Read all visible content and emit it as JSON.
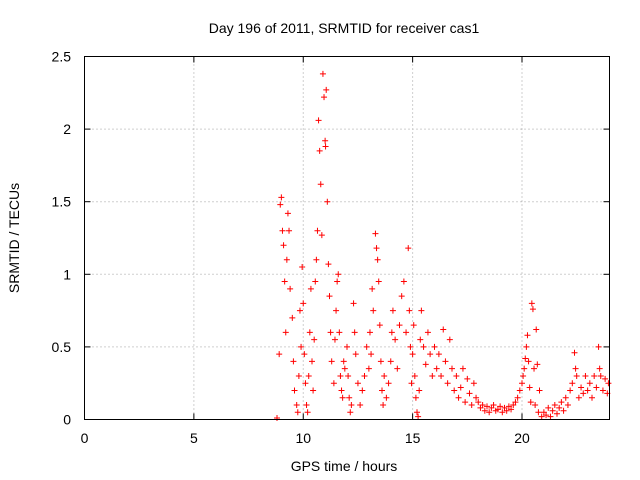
{
  "chart_data": {
    "type": "scatter",
    "title": "Day 196 of 2011, SRMTID for receiver cas1",
    "xlabel": "GPS time / hours",
    "ylabel": "SRMTID / TECUs",
    "xlim": [
      0,
      24
    ],
    "ylim": [
      0,
      2.5
    ],
    "xticks": [
      0,
      5,
      10,
      15,
      20
    ],
    "xtick_labels": [
      "0",
      "5",
      "10",
      "15",
      "20"
    ],
    "yticks": [
      0,
      0.5,
      1,
      1.5,
      2,
      2.5
    ],
    "ytick_labels": [
      "0",
      "0.5",
      "1",
      "1.5",
      "2",
      "2.5"
    ],
    "grid": true,
    "marker": "+",
    "marker_color": "#ff0000",
    "series": [
      {
        "name": "cas1",
        "points": [
          [
            8.8,
            0.01
          ],
          [
            8.9,
            0.45
          ],
          [
            8.95,
            1.48
          ],
          [
            9.0,
            1.53
          ],
          [
            9.05,
            1.3
          ],
          [
            9.1,
            1.2
          ],
          [
            9.15,
            0.95
          ],
          [
            9.2,
            0.6
          ],
          [
            9.25,
            1.1
          ],
          [
            9.3,
            1.42
          ],
          [
            9.35,
            1.3
          ],
          [
            9.4,
            0.9
          ],
          [
            9.5,
            0.7
          ],
          [
            9.55,
            0.4
          ],
          [
            9.6,
            0.2
          ],
          [
            9.7,
            0.1
          ],
          [
            9.75,
            0.05
          ],
          [
            9.8,
            0.3
          ],
          [
            9.85,
            0.75
          ],
          [
            9.9,
            0.5
          ],
          [
            9.95,
            1.05
          ],
          [
            10.0,
            0.8
          ],
          [
            10.05,
            0.45
          ],
          [
            10.1,
            0.25
          ],
          [
            10.15,
            0.1
          ],
          [
            10.2,
            0.05
          ],
          [
            10.25,
            0.3
          ],
          [
            10.3,
            0.6
          ],
          [
            10.35,
            0.9
          ],
          [
            10.4,
            0.4
          ],
          [
            10.45,
            0.2
          ],
          [
            10.5,
            0.55
          ],
          [
            10.55,
            0.95
          ],
          [
            10.6,
            1.1
          ],
          [
            10.65,
            1.3
          ],
          [
            10.7,
            2.06
          ],
          [
            10.75,
            1.85
          ],
          [
            10.8,
            1.62
          ],
          [
            10.85,
            1.27
          ],
          [
            10.9,
            2.38
          ],
          [
            10.95,
            2.22
          ],
          [
            11.0,
            1.92
          ],
          [
            11.02,
            1.88
          ],
          [
            11.05,
            2.27
          ],
          [
            11.1,
            1.5
          ],
          [
            11.15,
            1.07
          ],
          [
            11.2,
            0.85
          ],
          [
            11.25,
            0.6
          ],
          [
            11.3,
            0.4
          ],
          [
            11.4,
            0.25
          ],
          [
            11.45,
            0.55
          ],
          [
            11.5,
            0.75
          ],
          [
            11.55,
            0.95
          ],
          [
            11.6,
            1.0
          ],
          [
            11.65,
            0.6
          ],
          [
            11.7,
            0.3
          ],
          [
            11.75,
            0.2
          ],
          [
            11.8,
            0.15
          ],
          [
            11.85,
            0.4
          ],
          [
            11.9,
            0.35
          ],
          [
            12.0,
            0.5
          ],
          [
            12.05,
            0.3
          ],
          [
            12.1,
            0.15
          ],
          [
            12.15,
            0.05
          ],
          [
            12.2,
            0.1
          ],
          [
            12.3,
            0.8
          ],
          [
            12.35,
            0.6
          ],
          [
            12.4,
            0.45
          ],
          [
            12.5,
            0.25
          ],
          [
            12.6,
            0.1
          ],
          [
            12.7,
            0.2
          ],
          [
            12.8,
            0.3
          ],
          [
            12.9,
            0.5
          ],
          [
            13.0,
            0.35
          ],
          [
            13.05,
            0.6
          ],
          [
            13.1,
            0.45
          ],
          [
            13.15,
            0.9
          ],
          [
            13.2,
            0.75
          ],
          [
            13.3,
            1.28
          ],
          [
            13.35,
            1.18
          ],
          [
            13.4,
            1.1
          ],
          [
            13.45,
            0.95
          ],
          [
            13.5,
            0.65
          ],
          [
            13.55,
            0.4
          ],
          [
            13.6,
            0.2
          ],
          [
            13.65,
            0.1
          ],
          [
            13.7,
            0.3
          ],
          [
            13.8,
            0.15
          ],
          [
            13.9,
            0.25
          ],
          [
            14.0,
            0.4
          ],
          [
            14.05,
            0.6
          ],
          [
            14.1,
            0.75
          ],
          [
            14.2,
            0.55
          ],
          [
            14.3,
            0.35
          ],
          [
            14.4,
            0.65
          ],
          [
            14.5,
            0.85
          ],
          [
            14.6,
            0.95
          ],
          [
            14.7,
            0.6
          ],
          [
            14.8,
            1.18
          ],
          [
            14.85,
            0.75
          ],
          [
            14.9,
            0.5
          ],
          [
            14.95,
            0.25
          ],
          [
            15.0,
            0.45
          ],
          [
            15.05,
            0.65
          ],
          [
            15.1,
            0.3
          ],
          [
            15.15,
            0.15
          ],
          [
            15.2,
            0.05
          ],
          [
            15.25,
            0.02
          ],
          [
            15.3,
            0.2
          ],
          [
            15.35,
            0.55
          ],
          [
            15.4,
            0.75
          ],
          [
            15.5,
            0.5
          ],
          [
            15.6,
            0.38
          ],
          [
            15.7,
            0.6
          ],
          [
            15.8,
            0.45
          ],
          [
            15.9,
            0.3
          ],
          [
            16.0,
            0.5
          ],
          [
            16.1,
            0.35
          ],
          [
            16.2,
            0.45
          ],
          [
            16.3,
            0.3
          ],
          [
            16.4,
            0.62
          ],
          [
            16.5,
            0.4
          ],
          [
            16.6,
            0.25
          ],
          [
            16.7,
            0.55
          ],
          [
            16.8,
            0.35
          ],
          [
            16.9,
            0.2
          ],
          [
            17.0,
            0.3
          ],
          [
            17.1,
            0.15
          ],
          [
            17.2,
            0.22
          ],
          [
            17.3,
            0.35
          ],
          [
            17.4,
            0.12
          ],
          [
            17.5,
            0.28
          ],
          [
            17.6,
            0.18
          ],
          [
            17.7,
            0.1
          ],
          [
            17.8,
            0.25
          ],
          [
            17.9,
            0.15
          ],
          [
            18.0,
            0.12
          ],
          [
            18.1,
            0.08
          ],
          [
            18.2,
            0.1
          ],
          [
            18.3,
            0.06
          ],
          [
            18.4,
            0.09
          ],
          [
            18.5,
            0.05
          ],
          [
            18.6,
            0.08
          ],
          [
            18.7,
            0.1
          ],
          [
            18.8,
            0.06
          ],
          [
            18.9,
            0.07
          ],
          [
            19.0,
            0.09
          ],
          [
            19.1,
            0.05
          ],
          [
            19.2,
            0.08
          ],
          [
            19.3,
            0.06
          ],
          [
            19.4,
            0.09
          ],
          [
            19.5,
            0.07
          ],
          [
            19.6,
            0.1
          ],
          [
            19.7,
            0.12
          ],
          [
            19.8,
            0.15
          ],
          [
            19.9,
            0.2
          ],
          [
            20.0,
            0.25
          ],
          [
            20.05,
            0.3
          ],
          [
            20.1,
            0.35
          ],
          [
            20.15,
            0.42
          ],
          [
            20.2,
            0.5
          ],
          [
            20.25,
            0.58
          ],
          [
            20.3,
            0.4
          ],
          [
            20.35,
            0.22
          ],
          [
            20.4,
            0.12
          ],
          [
            20.45,
            0.8
          ],
          [
            20.5,
            0.76
          ],
          [
            20.55,
            0.35
          ],
          [
            20.6,
            0.1
          ],
          [
            20.65,
            0.62
          ],
          [
            20.7,
            0.38
          ],
          [
            20.75,
            0.05
          ],
          [
            20.8,
            0.2
          ],
          [
            20.9,
            0.02
          ],
          [
            21.0,
            0.05
          ],
          [
            21.1,
            0.03
          ],
          [
            21.2,
            0.08
          ],
          [
            21.3,
            0.02
          ],
          [
            21.4,
            0.06
          ],
          [
            21.5,
            0.1
          ],
          [
            21.6,
            0.04
          ],
          [
            21.7,
            0.08
          ],
          [
            21.8,
            0.12
          ],
          [
            21.9,
            0.06
          ],
          [
            22.0,
            0.15
          ],
          [
            22.1,
            0.1
          ],
          [
            22.2,
            0.2
          ],
          [
            22.3,
            0.25
          ],
          [
            22.4,
            0.46
          ],
          [
            22.45,
            0.35
          ],
          [
            22.5,
            0.3
          ],
          [
            22.6,
            0.15
          ],
          [
            22.7,
            0.22
          ],
          [
            22.8,
            0.18
          ],
          [
            22.9,
            0.3
          ],
          [
            23.0,
            0.2
          ],
          [
            23.1,
            0.25
          ],
          [
            23.2,
            0.15
          ],
          [
            23.3,
            0.3
          ],
          [
            23.4,
            0.22
          ],
          [
            23.5,
            0.5
          ],
          [
            23.55,
            0.35
          ],
          [
            23.6,
            0.3
          ],
          [
            23.7,
            0.2
          ],
          [
            23.8,
            0.28
          ],
          [
            23.9,
            0.18
          ],
          [
            23.95,
            0.25
          ]
        ]
      }
    ]
  }
}
